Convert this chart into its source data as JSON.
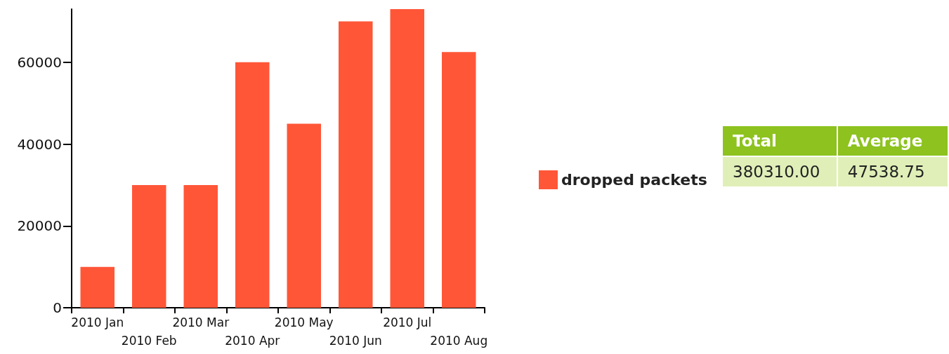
{
  "chart_data": {
    "type": "bar",
    "categories": [
      "2010 Jan",
      "2010 Feb",
      "2010 Mar",
      "2010 Apr",
      "2010 May",
      "2010 Jun",
      "2010 Jul",
      "2010 Aug"
    ],
    "series": [
      {
        "name": "dropped packets",
        "color": "#ff5638",
        "values": [
          10000,
          30000,
          30000,
          60000,
          45000,
          70000,
          73000,
          62500
        ]
      }
    ],
    "ylim": [
      0,
      73000
    ],
    "yticks": [
      0,
      20000,
      40000,
      60000
    ],
    "grid": false,
    "legend": "right",
    "annotations": [
      "Total",
      "Average",
      "380310.00",
      "47538.75"
    ]
  }
}
